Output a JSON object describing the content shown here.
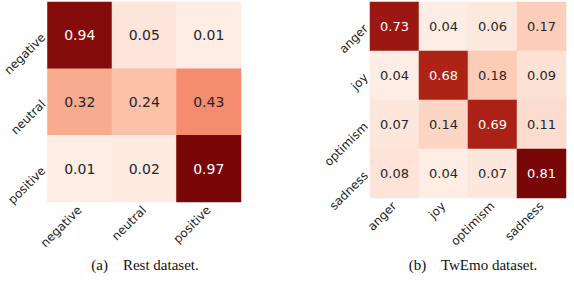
{
  "chart_data": [
    {
      "type": "heatmap",
      "title": "(a)    Rest dataset.",
      "data_labels": true,
      "x_categories": [
        "negative",
        "neutral",
        "positive"
      ],
      "y_categories": [
        "negative",
        "neutral",
        "positive"
      ],
      "cells": [
        [
          0.94,
          0.05,
          0.01
        ],
        [
          0.32,
          0.24,
          0.43
        ],
        [
          0.01,
          0.02,
          0.97
        ]
      ]
    },
    {
      "type": "heatmap",
      "title": "(b)    TwEmo dataset.",
      "data_labels": true,
      "x_categories": [
        "anger",
        "joy",
        "optimism",
        "sadness"
      ],
      "y_categories": [
        "anger",
        "joy",
        "optimism",
        "sadness"
      ],
      "cells": [
        [
          0.73,
          0.04,
          0.06,
          0.17
        ],
        [
          0.04,
          0.68,
          0.18,
          0.09
        ],
        [
          0.07,
          0.14,
          0.69,
          0.11
        ],
        [
          0.08,
          0.04,
          0.07,
          0.81
        ]
      ]
    }
  ]
}
